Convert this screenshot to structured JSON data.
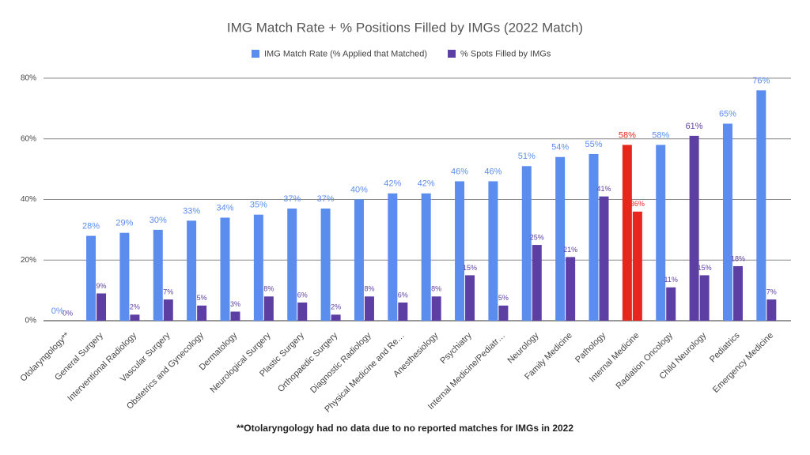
{
  "chart_data": {
    "type": "bar",
    "title": "IMG Match Rate + % Positions Filled by IMGs (2022 Match)",
    "footnote": "**Otolaryngology had no data due to no reported matches for IMGs in 2022",
    "legend": "top",
    "grid": true,
    "categories": [
      "Otolaryngology**",
      "General Surgery",
      "Interventional Radiology",
      "Vascular Surgery",
      "Obstetrics and Gynecology",
      "Dermatology",
      "Neurological Surgery",
      "Plastic Surgery",
      "Orthopaedic Surgery",
      "Diagnostic Radiology",
      "Physical Medicine and Re…",
      "Anesthesiology",
      "Psychiatry",
      "Internal Medicine/Pediatr…",
      "Neurology",
      "Family Medicine",
      "Pathology",
      "Internal Medicine",
      "Radiation Oncology",
      "Child Neurology",
      "Pediatrics",
      "Emergency Medicine"
    ],
    "ylim": [
      0,
      80
    ],
    "yticks": [
      {
        "value": 0,
        "label": "0%"
      },
      {
        "value": 20,
        "label": "20%"
      },
      {
        "value": 40,
        "label": "40%"
      },
      {
        "value": 60,
        "label": "60%"
      },
      {
        "value": 80,
        "label": "80%"
      }
    ],
    "series": [
      {
        "name": "IMG Match Rate (% Applied that Matched)",
        "color": "#5b8def",
        "colors": [
          "#5b8def",
          "#5b8def",
          "#5b8def",
          "#5b8def",
          "#5b8def",
          "#5b8def",
          "#5b8def",
          "#5b8def",
          "#5b8def",
          "#5b8def",
          "#5b8def",
          "#5b8def",
          "#5b8def",
          "#5b8def",
          "#5b8def",
          "#5b8def",
          "#5b8def",
          "#e8261f",
          "#5b8def",
          "#5d3fa3",
          "#5b8def",
          "#5b8def"
        ],
        "values": [
          0,
          28,
          29,
          30,
          33,
          34,
          35,
          37,
          37,
          40,
          42,
          42,
          46,
          46,
          51,
          54,
          55,
          58,
          58,
          61,
          65,
          76
        ],
        "value_labels": [
          "0%",
          "28%",
          "29%",
          "30%",
          "33%",
          "34%",
          "35%",
          "37%",
          "37%",
          "40%",
          "42%",
          "42%",
          "46%",
          "46%",
          "51%",
          "54%",
          "55%",
          "58%",
          "58%",
          "61%",
          "65%",
          "76%"
        ]
      },
      {
        "name": "% Spots Filled by IMGs",
        "color": "#5d3fa3",
        "colors": [
          "#5d3fa3",
          "#5d3fa3",
          "#5d3fa3",
          "#5d3fa3",
          "#5d3fa3",
          "#5d3fa3",
          "#5d3fa3",
          "#5d3fa3",
          "#5d3fa3",
          "#5d3fa3",
          "#5d3fa3",
          "#5d3fa3",
          "#5d3fa3",
          "#5d3fa3",
          "#5d3fa3",
          "#5d3fa3",
          "#5d3fa3",
          "#e8261f",
          "#5d3fa3",
          "#5d3fa3",
          "#5d3fa3",
          "#5d3fa3"
        ],
        "values": [
          0,
          9,
          2,
          7,
          5,
          3,
          8,
          6,
          2,
          8,
          6,
          8,
          15,
          5,
          25,
          21,
          41,
          36,
          11,
          15,
          18,
          7
        ],
        "value_labels": [
          "0%",
          "9%",
          "2%",
          "7%",
          "5%",
          "3%",
          "8%",
          "6%",
          "2%",
          "8%",
          "6%",
          "8%",
          "15%",
          "5%",
          "25%",
          "21%",
          "41%",
          "36%",
          "11%",
          "15%",
          "18%",
          "7%"
        ]
      }
    ]
  }
}
